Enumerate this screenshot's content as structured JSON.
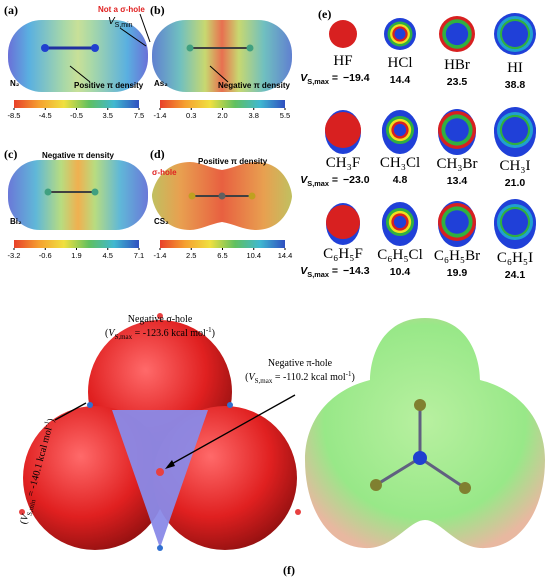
{
  "panel_a": {
    "label": "(a)",
    "molecule": "N₂",
    "colorbar_ticks": [
      "-8.5",
      "-4.5",
      "-0.5",
      "3.5",
      "7.5"
    ],
    "note": "Positive π density",
    "red_note": "Not a σ-hole",
    "vs_min": [
      "V",
      "S,min"
    ]
  },
  "panel_b": {
    "label": "(b)",
    "molecule": "As₂",
    "colorbar_ticks": [
      "-1.4",
      "0.3",
      "2.0",
      "3.8",
      "5.5"
    ],
    "note": "Negative π density"
  },
  "panel_c": {
    "label": "(c)",
    "molecule": "Bi₂",
    "colorbar_ticks": [
      "-3.2",
      "-0.6",
      "1.9",
      "4.5",
      "7.1"
    ],
    "note": "Negative π density"
  },
  "panel_d": {
    "label": "(d)",
    "molecule": "CS₂",
    "colorbar_ticks": [
      "-1.4",
      "2.5",
      "6.5",
      "10.4",
      "14.4"
    ],
    "note": "Positive π density",
    "red_note": "σ-hole"
  },
  "panel_e": {
    "label": "(e)",
    "vs_label": [
      "V",
      "S,max",
      " ="
    ],
    "rows": [
      {
        "molecules": [
          "HF",
          "HCl",
          "HBr",
          "HI"
        ],
        "values": [
          "−19.4",
          "14.4",
          "23.5",
          "38.8"
        ]
      },
      {
        "molecules": [
          "CH₃F",
          "CH₃Cl",
          "CH₃Br",
          "CH₃I"
        ],
        "values": [
          "−23.0",
          "4.8",
          "13.4",
          "21.0"
        ]
      },
      {
        "molecules": [
          "C₆H₅F",
          "C₆H₅Cl",
          "C₆H₅Br",
          "C₆H₅I"
        ],
        "values": [
          "−14.3",
          "10.4",
          "19.9",
          "24.1"
        ]
      }
    ]
  },
  "panel_f": {
    "label": "(f)",
    "sigma_hole": {
      "title": "Negative σ-hole",
      "value": [
        "(",
        "V",
        "S,max",
        " = -123.6 kcal mol",
        "-1",
        ")"
      ]
    },
    "pi_hole": {
      "title": "Negative π-hole",
      "value": [
        "(",
        "V",
        "S,max",
        " = -110.2 kcal mol",
        "-1",
        ")"
      ]
    },
    "vs_min": [
      "(",
      "V",
      "S,min",
      " = -140.1 kcal mol",
      "-1",
      ")"
    ]
  }
}
